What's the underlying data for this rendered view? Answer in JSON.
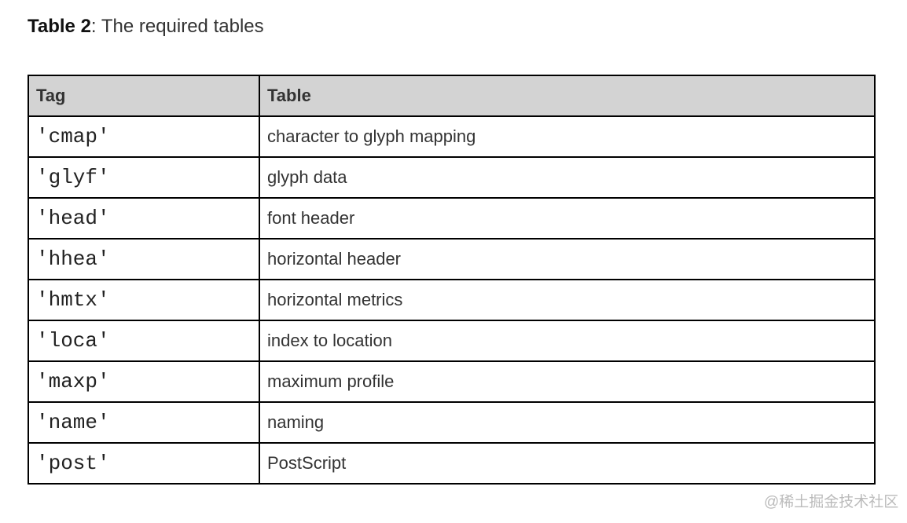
{
  "caption": {
    "label": "Table 2",
    "separator": ":",
    "text": " The required tables"
  },
  "table": {
    "headers": [
      "Tag",
      "Table"
    ],
    "rows": [
      [
        "'cmap'",
        "character to glyph mapping"
      ],
      [
        "'glyf'",
        "glyph data"
      ],
      [
        "'head'",
        "font header"
      ],
      [
        "'hhea'",
        "horizontal header"
      ],
      [
        "'hmtx'",
        "horizontal metrics"
      ],
      [
        "'loca'",
        "index to location"
      ],
      [
        "'maxp'",
        "maximum profile"
      ],
      [
        "'name'",
        "naming"
      ],
      [
        "'post'",
        "PostScript"
      ]
    ]
  },
  "watermark": "@稀土掘金技术社区"
}
